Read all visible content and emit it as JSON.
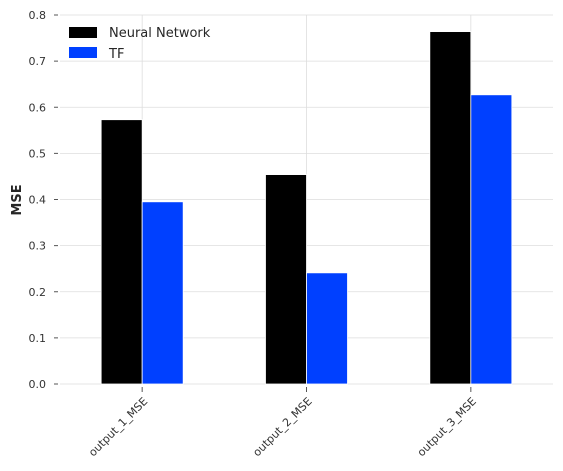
{
  "chart_data": {
    "type": "bar",
    "categories": [
      "output_1_MSE",
      "output_2_MSE",
      "output_3_MSE"
    ],
    "series": [
      {
        "name": "Neural Network",
        "color": "#000000",
        "values": [
          0.573,
          0.454,
          0.764
        ]
      },
      {
        "name": "TF",
        "color": "#0040ff",
        "values": [
          0.395,
          0.241,
          0.627
        ]
      }
    ],
    "ylabel": "MSE",
    "xlabel": "",
    "ylim": [
      0,
      0.8
    ],
    "yticks": [
      "0.0",
      "0.1",
      "0.2",
      "0.3",
      "0.4",
      "0.5",
      "0.6",
      "0.7",
      "0.8"
    ],
    "grid": true,
    "legend_position": "top-left"
  }
}
